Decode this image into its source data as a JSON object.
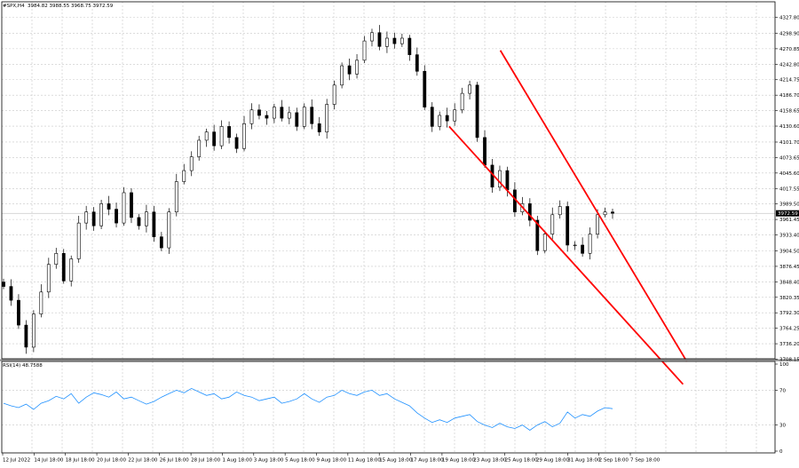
{
  "header": {
    "symbol": "#SPX,H4",
    "ohlc": "3984.82 3988.55 3968.75 3972.59"
  },
  "chart_data": [
    {
      "type": "candlestick",
      "title": "#SPX,H4",
      "price_axis": {
        "ticks": [
          4327.8,
          4298.9,
          4270.85,
          4242.8,
          4214.75,
          4186.7,
          4158.65,
          4130.6,
          4101.7,
          4073.65,
          4045.6,
          4017.55,
          3989.5,
          3961.45,
          3933.4,
          3904.5,
          3876.45,
          3848.4,
          3820.35,
          3792.3,
          3764.25,
          3736.2,
          3708.15
        ],
        "range": [
          3698,
          4340
        ],
        "current": "3972.59"
      },
      "x_labels": [
        "12 Jul 2022",
        "14 Jul 18:00",
        "18 Jul 18:00",
        "20 Jul 18:00",
        "22 Jul 18:00",
        "26 Jul 18:00",
        "28 Jul 18:00",
        "1 Aug 18:00",
        "3 Aug 18:00",
        "5 Aug 18:00",
        "9 Aug 18:00",
        "11 Aug 18:00",
        "15 Aug 18:00",
        "17 Aug 18:00",
        "19 Aug 18:00",
        "23 Aug 18:00",
        "25 Aug 18:00",
        "29 Aug 18:00",
        "31 Aug 18:00",
        "2 Sep 18:00",
        "7 Sep 18:00"
      ],
      "close_path": [
        3840,
        3815,
        3770,
        3730,
        3790,
        3830,
        3880,
        3900,
        3850,
        3890,
        3955,
        3975,
        3950,
        3990,
        3980,
        3955,
        4010,
        3965,
        3950,
        3975,
        3930,
        3910,
        3975,
        4030,
        4050,
        4075,
        4105,
        4120,
        4095,
        4130,
        4110,
        4090,
        4135,
        4160,
        4150,
        4145,
        4165,
        4145,
        4155,
        4130,
        4165,
        4135,
        4120,
        4170,
        4205,
        4240,
        4225,
        4250,
        4285,
        4300,
        4275,
        4290,
        4280,
        4290,
        4260,
        4230,
        4165,
        4130,
        4150,
        4140,
        4160,
        4190,
        4205,
        4110,
        4060,
        4020,
        4050,
        4015,
        3975,
        3990,
        3960,
        3905,
        3935,
        3970,
        3985,
        3915,
        3915,
        3900,
        3935,
        3970,
        3975,
        3972.59
      ],
      "channel": {
        "color": "#ff0000",
        "upper": {
          "from": [
            "25 Aug 18:00",
            4255
          ],
          "to": [
            "7 Sep 18:00",
            3875
          ]
        },
        "lower": {
          "from": [
            "19 Aug 18:00",
            4130
          ],
          "to": [
            "7 Sep 18:00",
            3765
          ]
        }
      }
    },
    {
      "type": "line",
      "title": "RSI(14) 48.7588",
      "ylim": [
        0,
        100
      ],
      "y_ticks": [
        100,
        70,
        30,
        0
      ],
      "series": [
        {
          "name": "RSI(14) 48.7588",
          "color": "#1e90ff",
          "values": [
            55,
            52,
            50,
            54,
            48,
            55,
            58,
            63,
            60,
            66,
            55,
            62,
            67,
            65,
            62,
            68,
            60,
            62,
            58,
            54,
            57,
            62,
            66,
            70,
            67,
            72,
            68,
            64,
            66,
            60,
            62,
            68,
            64,
            62,
            58,
            60,
            62,
            55,
            57,
            60,
            66,
            60,
            56,
            62,
            64,
            70,
            66,
            64,
            68,
            70,
            64,
            66,
            60,
            56,
            52,
            44,
            38,
            33,
            36,
            33,
            38,
            40,
            42,
            34,
            30,
            27,
            32,
            28,
            26,
            30,
            24,
            30,
            34,
            28,
            32,
            45,
            38,
            42,
            40,
            46,
            50,
            48.7588
          ]
        }
      ]
    }
  ]
}
